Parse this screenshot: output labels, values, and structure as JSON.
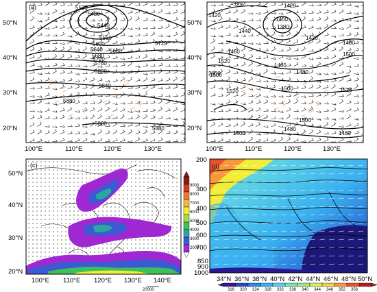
{
  "panels": [
    {
      "id": "a",
      "label": "(a)",
      "y_ticks": [
        "50°N",
        "40°N",
        "30°N",
        "20°N"
      ],
      "x_ticks": [
        "100°E",
        "110°E",
        "120°E",
        "130°E"
      ],
      "contour_labels": [
        "5520",
        "5480",
        "5440",
        "5560",
        "5600",
        "5640",
        "5680",
        "5720",
        "5680",
        "5760",
        "5720",
        "5800",
        "5840",
        "5880",
        "5880",
        "5880"
      ]
    },
    {
      "id": "b",
      "label": "",
      "y_ticks": [
        "50°N",
        "40°N",
        "30°N",
        "20°N"
      ],
      "x_ticks": [
        "100°E",
        "110°E",
        "120°E",
        "130°E"
      ],
      "contour_labels": [
        "1440",
        "1420",
        "1420",
        "1400",
        "1380",
        "1440",
        "1420",
        "1460",
        "1480",
        "1500",
        "1460",
        "1480",
        "1520",
        "1500",
        "2000",
        "1520",
        "1520",
        "1500",
        "1500",
        "1480",
        "1500",
        "1480"
      ]
    },
    {
      "id": "c",
      "label": "(c)",
      "y_ticks": [
        "50°N",
        "40°N",
        "30°N",
        "20°N"
      ],
      "x_ticks": [
        "100°E",
        "110°E",
        "120°E",
        "130°E",
        "140°E"
      ],
      "vector_ref": "20000",
      "colorbar_ticks": [
        "9000",
        "8000",
        "7000",
        "6000",
        "5000",
        "4000",
        "3000",
        "2000"
      ],
      "colorbar_colors": [
        "#8c1a12",
        "#d83a1e",
        "#f07830",
        "#f5b83a",
        "#f2ee38",
        "#a8dc3c",
        "#3cc05a",
        "#2aa8a0",
        "#3c5ad2",
        "#a028d2",
        "#ffffff"
      ]
    },
    {
      "id": "d",
      "label": "(d)",
      "y_ticks": [
        "200",
        "300",
        "400",
        "500",
        "600",
        "700",
        "850",
        "900",
        "1000"
      ],
      "x_ticks": [
        "34°N",
        "36°N",
        "38°N",
        "40°N",
        "42°N",
        "44°N",
        "46°N",
        "48°N",
        "50°N"
      ],
      "colorbar_ticks": [
        "316",
        "320",
        "324",
        "328",
        "332",
        "336",
        "340",
        "344",
        "348",
        "352",
        "356"
      ],
      "colorbar_colors": [
        "#3a1890",
        "#2a48c8",
        "#2a88e0",
        "#3ab0f0",
        "#5ad0e8",
        "#7ae0b0",
        "#a0e680",
        "#d8ee58",
        "#f8d040",
        "#f89838",
        "#e85030",
        "#c01818"
      ]
    }
  ]
}
